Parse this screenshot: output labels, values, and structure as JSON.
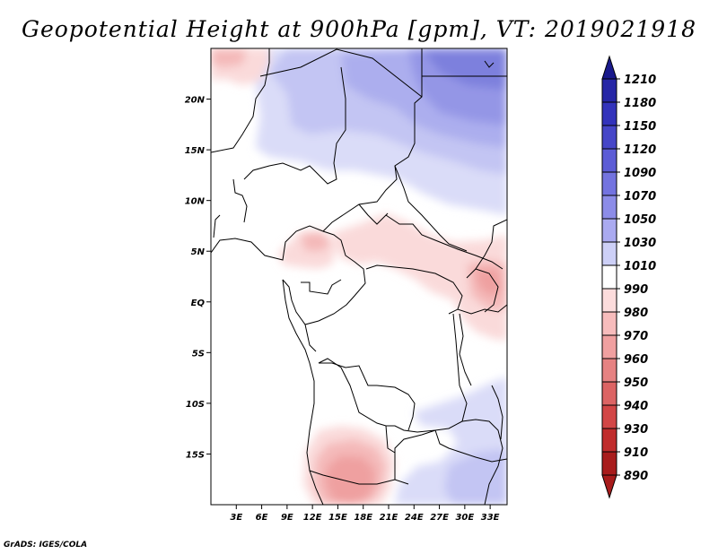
{
  "title": "Geopotential Height at 900hPa [gpm], VT: 2019021918",
  "credit": "GrADS: IGES/COLA",
  "map": {
    "lat_ticks": [
      "20N",
      "15N",
      "10N",
      "5N",
      "EQ",
      "5S",
      "10S",
      "15S"
    ],
    "lon_ticks": [
      "3E",
      "6E",
      "9E",
      "12E",
      "15E",
      "18E",
      "21E",
      "24E",
      "27E",
      "30E",
      "33E"
    ],
    "lat_values": [
      20,
      15,
      10,
      5,
      0,
      -5,
      -10,
      -15
    ],
    "lon_values": [
      3,
      6,
      9,
      12,
      15,
      18,
      21,
      24,
      27,
      30,
      33
    ],
    "lon_range": [
      0,
      35
    ],
    "lat_range": [
      -20,
      25
    ]
  },
  "colorbar": {
    "levels": [
      "1210",
      "1180",
      "1150",
      "1120",
      "1090",
      "1070",
      "1050",
      "1030",
      "1010",
      "990",
      "980",
      "970",
      "960",
      "950",
      "940",
      "930",
      "910",
      "890"
    ],
    "colors": [
      "#1a1a8c",
      "#2626a6",
      "#3333bb",
      "#4646c8",
      "#5c5cd6",
      "#7373e0",
      "#8c8ce8",
      "#aaaaf0",
      "#cdd0f7",
      "#ffffff",
      "#fcdcdc",
      "#f7bcbc",
      "#f0a0a0",
      "#e68282",
      "#dc6464",
      "#d24646",
      "#c02c2c",
      "#a81c1c"
    ]
  }
}
